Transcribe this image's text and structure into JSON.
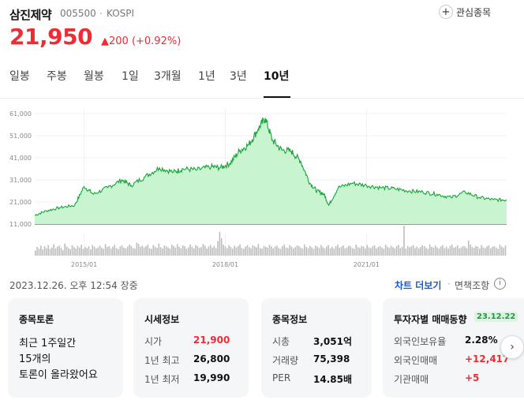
{
  "header": {
    "name": "삼진제약",
    "code": "005500",
    "dot": "·",
    "market": "KOSPI",
    "fav_label": "관심종목",
    "price": "21,950",
    "change": "▲200 (+0.92%)"
  },
  "tabs": [
    {
      "label": "일봉"
    },
    {
      "label": "주봉"
    },
    {
      "label": "월봉"
    },
    {
      "label": "1일"
    },
    {
      "label": "3개월"
    },
    {
      "label": "1년"
    },
    {
      "label": "3년"
    },
    {
      "label": "10년"
    }
  ],
  "active_tab": "10년",
  "chart_data": {
    "type": "area",
    "yticks": [
      "61,000",
      "51,000",
      "41,000",
      "31,000",
      "21,000",
      "11,000"
    ],
    "ylim": [
      11000,
      61000
    ],
    "xticks": [
      "2015/01",
      "2018/01",
      "2021/01"
    ],
    "series": [
      {
        "x": [
          2013.95,
          2014.2,
          2014.5,
          2014.8,
          2015.0,
          2015.2,
          2015.5,
          2015.8,
          2016.0,
          2016.3,
          2016.6,
          2016.9,
          2017.1,
          2017.4,
          2017.7,
          2017.9,
          2018.1,
          2018.3,
          2018.5,
          2018.7,
          2018.85,
          2019.0,
          2019.2,
          2019.4,
          2019.6,
          2019.8,
          2019.95,
          2020.1,
          2020.2,
          2020.4,
          2020.7,
          2021.0,
          2021.3,
          2021.6,
          2021.9,
          2022.2,
          2022.5,
          2022.8,
          2023.1,
          2023.4,
          2023.7,
          2023.98
        ],
        "values": [
          15000,
          17000,
          18500,
          19500,
          28000,
          24500,
          27500,
          31000,
          28500,
          32500,
          36500,
          34500,
          36000,
          35500,
          37000,
          36500,
          38500,
          44000,
          47000,
          54000,
          59000,
          49000,
          44500,
          44000,
          39500,
          29500,
          26000,
          24500,
          19500,
          27500,
          29500,
          28500,
          27500,
          27000,
          26000,
          25500,
          24500,
          23000,
          25500,
          23000,
          22000,
          21950
        ]
      }
    ],
    "color": "#1aa33c",
    "fill": "#c8f5cf"
  },
  "volume_data": [
    20,
    35,
    28,
    40,
    25,
    38,
    30,
    42,
    27,
    33,
    45,
    29,
    36,
    40,
    31,
    22,
    48,
    37,
    30,
    26,
    41,
    34,
    28,
    39,
    32,
    44,
    27,
    35,
    30,
    38,
    25,
    42,
    36,
    29,
    33,
    40,
    31,
    27,
    46,
    34,
    38,
    28,
    35,
    43,
    30,
    26,
    37,
    41,
    32,
    29,
    36,
    44,
    39,
    31,
    28,
    52,
    47,
    35,
    40,
    33,
    38,
    45,
    30,
    27,
    42,
    36,
    31,
    48,
    34,
    29,
    40,
    37,
    33,
    28,
    44,
    39,
    32,
    46,
    35,
    30,
    41,
    38,
    27,
    33,
    45,
    36,
    29,
    42,
    38,
    31,
    34,
    47,
    40,
    28,
    36,
    43,
    32,
    39,
    30,
    58,
    95,
    70,
    44,
    37,
    30,
    42,
    35,
    28,
    40,
    33,
    38,
    45,
    31,
    27,
    36,
    42,
    34,
    29,
    41,
    37,
    33,
    46,
    30,
    28,
    39,
    35,
    32,
    43,
    37,
    29,
    36,
    40,
    31,
    27,
    38,
    45,
    33,
    30,
    42,
    36,
    29,
    34,
    41,
    38,
    32,
    28,
    45,
    35,
    30,
    39,
    33,
    27,
    40,
    36,
    31,
    43,
    34,
    29,
    37,
    42,
    30,
    35,
    28,
    38,
    44,
    32,
    36,
    41,
    29,
    33,
    40,
    37,
    30,
    27,
    45,
    34,
    31,
    39,
    36,
    28,
    42,
    33,
    30,
    37,
    41,
    29,
    35,
    38,
    32,
    27,
    44,
    36,
    31,
    40,
    34,
    29,
    38,
    43,
    30,
    35,
    120,
    28,
    39,
    33,
    37,
    42,
    30,
    36,
    29,
    34,
    41,
    38,
    31,
    27,
    45,
    35,
    32,
    40,
    33,
    29,
    37,
    42,
    30,
    36,
    28,
    39,
    44,
    32,
    35,
    41,
    29,
    33,
    38,
    37,
    30,
    60,
    45,
    34,
    31,
    39,
    36,
    28,
    42,
    33,
    30,
    37,
    41,
    29,
    35,
    38,
    32,
    27,
    44,
    36,
    31,
    40
  ],
  "footer": {
    "timestamp": "2023.12.26. 오후 12:54 장중",
    "chart_more": "차트 더보기",
    "sep": "·",
    "tax_label": "면책조항",
    "info_icon": "i"
  },
  "cards": {
    "discussion": {
      "title": "종목토론",
      "line1": "최근 1주일간",
      "line2": "15개의",
      "line3": "토론이 올라왔어요"
    },
    "market": {
      "title": "시세정보",
      "rows": [
        {
          "label": "시가",
          "value": "21,900"
        },
        {
          "label": "1년 최고",
          "value": "26,800"
        },
        {
          "label": "1년 최저",
          "value": "19,990"
        }
      ]
    },
    "stock": {
      "title": "종목정보",
      "rows": [
        {
          "label": "시총",
          "value": "3,051억"
        },
        {
          "label": "거래량",
          "value": "75,398"
        },
        {
          "label": "PER",
          "value": "14.85배"
        }
      ]
    },
    "investor": {
      "title": "투자자별 매매동향",
      "badge": "23.12.22",
      "rows": [
        {
          "label": "외국인보유율",
          "value": "2.28%"
        },
        {
          "label": "외국인매매",
          "value": "+12,417"
        },
        {
          "label": "기관매매",
          "value": "+5"
        }
      ]
    }
  },
  "next_icon": "›"
}
